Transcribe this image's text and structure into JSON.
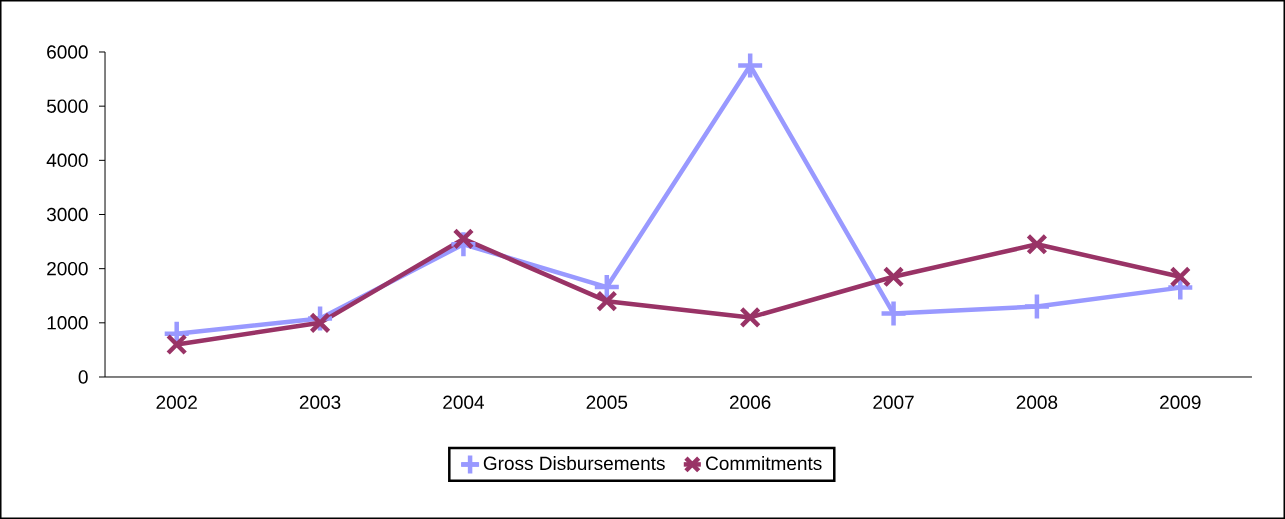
{
  "chart_data": {
    "type": "line",
    "categories": [
      "2002",
      "2003",
      "2004",
      "2005",
      "2006",
      "2007",
      "2008",
      "2009"
    ],
    "series": [
      {
        "name": "Gross Disbursements",
        "color": "#9999ff",
        "marker": "cross",
        "values": [
          800,
          1080,
          2450,
          1660,
          5750,
          1170,
          1300,
          1650
        ]
      },
      {
        "name": "Commitments",
        "color": "#993366",
        "marker": "cross",
        "values": [
          600,
          1000,
          2550,
          1400,
          1100,
          1850,
          2450,
          1850
        ]
      }
    ],
    "ylim": [
      0,
      6000
    ],
    "yticks": [
      0,
      1000,
      2000,
      3000,
      4000,
      5000,
      6000
    ],
    "grid": false,
    "legend": "bottom",
    "line_style": "solid"
  }
}
